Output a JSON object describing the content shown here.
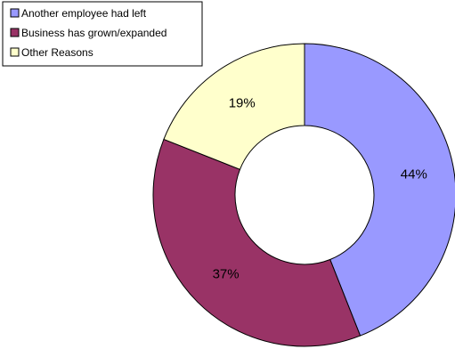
{
  "chart_data": {
    "type": "pie",
    "donut": true,
    "title": "",
    "categories": [
      "Another employee had left",
      "Business has grown/expanded",
      "Other Reasons"
    ],
    "values": [
      44,
      37,
      19
    ],
    "labels": [
      "44%",
      "37%",
      "19%"
    ],
    "colors": [
      "#9999ff",
      "#993366",
      "#ffffcc"
    ],
    "legend": {
      "position": "top-left",
      "entries": [
        "Another employee had left",
        "Business has grown/expanded",
        "Other Reasons"
      ]
    }
  }
}
